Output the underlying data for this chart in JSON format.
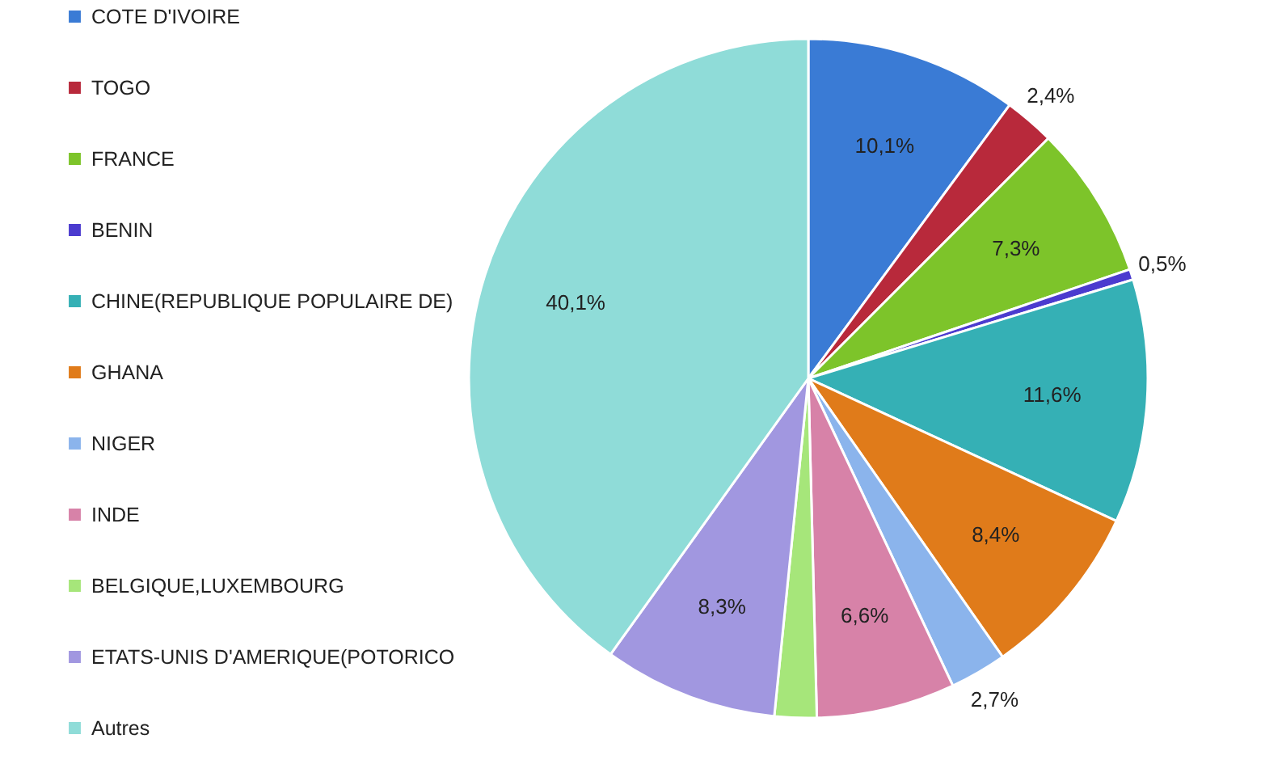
{
  "chart_data": {
    "type": "pie",
    "categories": [
      "COTE D'IVOIRE",
      "TOGO",
      "FRANCE",
      "BENIN",
      "CHINE(REPUBLIQUE POPULAIRE DE)",
      "GHANA",
      "NIGER",
      "INDE",
      "BELGIQUE,LUXEMBOURG",
      "ETATS-UNIS D'AMERIQUE(POTORICO",
      "Autres"
    ],
    "values": [
      10.1,
      2.4,
      7.3,
      0.5,
      11.6,
      8.4,
      2.7,
      6.6,
      2.0,
      8.3,
      40.1
    ],
    "colors": [
      "#3a7bd5",
      "#b8293b",
      "#7dc42a",
      "#4b3bcf",
      "#35b0b5",
      "#e07b1a",
      "#8bb4ec",
      "#d782a8",
      "#a6e67a",
      "#a197e0",
      "#8fdcd8"
    ],
    "value_labels": [
      "10,1%",
      "2,4%",
      "7,3%",
      "0,5%",
      "11,6%",
      "8,4%",
      "2,7%",
      "6,6%",
      null,
      "8,3%",
      "40,1%"
    ],
    "legend": "left"
  }
}
